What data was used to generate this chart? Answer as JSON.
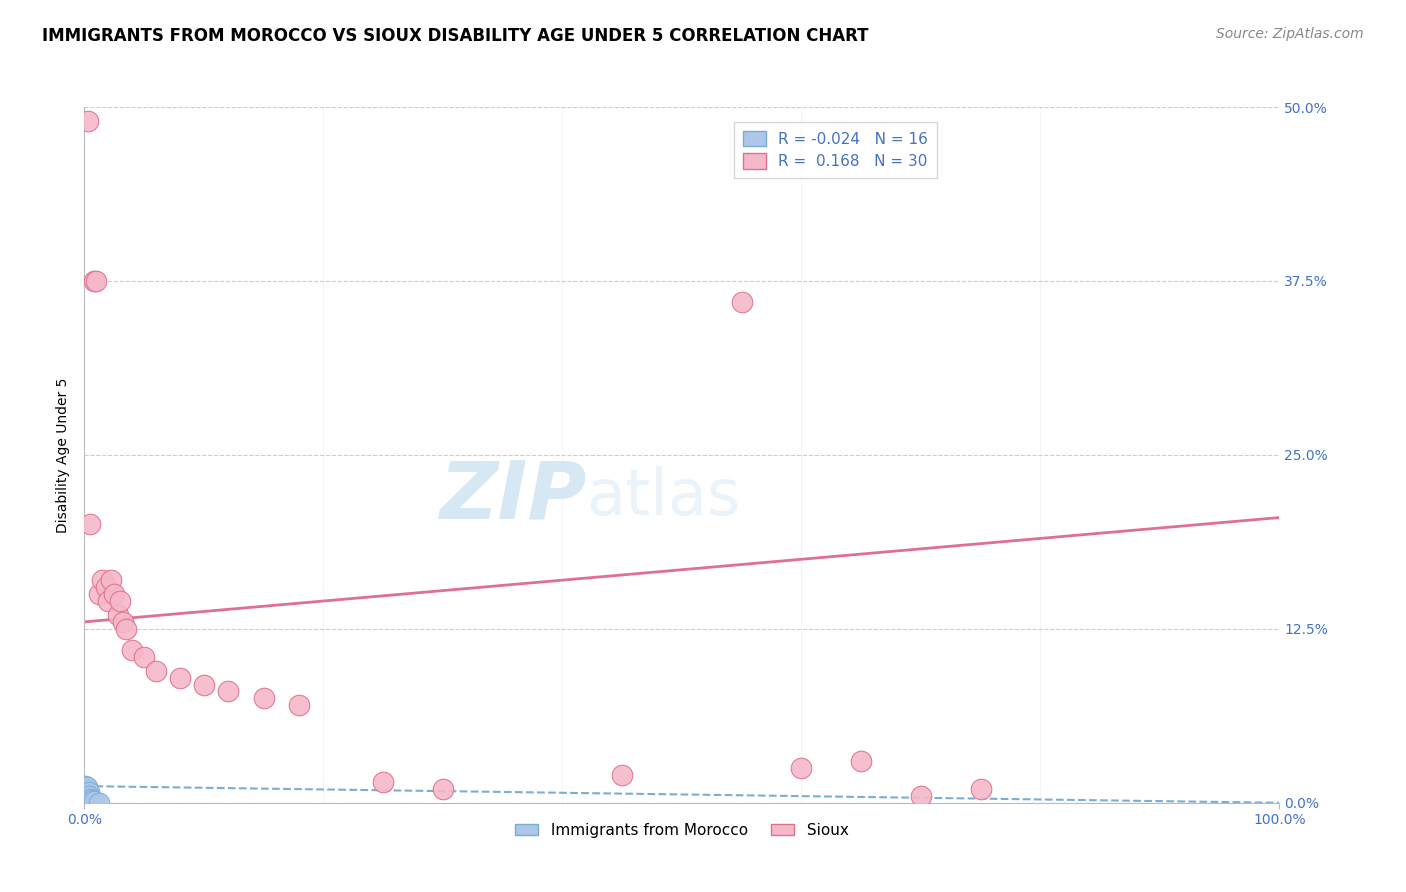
{
  "title": "IMMIGRANTS FROM MOROCCO VS SIOUX DISABILITY AGE UNDER 5 CORRELATION CHART",
  "source": "Source: ZipAtlas.com",
  "ylabel": "Disability Age Under 5",
  "xlim": [
    0.0,
    100.0
  ],
  "ylim": [
    0.0,
    50.0
  ],
  "yticks": [
    0.0,
    12.5,
    25.0,
    37.5,
    50.0
  ],
  "background_color": "#ffffff",
  "watermark_zip": "ZIP",
  "watermark_atlas": "atlas",
  "morocco_color": "#aec6e8",
  "morocco_edge": "#7aadd4",
  "morocco_trend_color": "#7aadd4",
  "sioux_color": "#f4b8c8",
  "sioux_edge": "#e07090",
  "sioux_trend_color": "#e07090",
  "R_morocco": -0.024,
  "N_morocco": 16,
  "R_sioux": 0.168,
  "N_sioux": 30,
  "morocco_x": [
    0.05,
    0.08,
    0.1,
    0.12,
    0.15,
    0.18,
    0.2,
    0.22,
    0.25,
    0.3,
    0.35,
    0.4,
    0.5,
    0.6,
    0.8,
    1.2
  ],
  "morocco_y": [
    0.8,
    1.2,
    0.5,
    0.9,
    1.0,
    0.7,
    1.1,
    0.6,
    0.4,
    0.3,
    0.8,
    0.5,
    0.3,
    0.2,
    0.1,
    0.0
  ],
  "sioux_x": [
    0.3,
    0.5,
    0.8,
    1.0,
    1.2,
    1.5,
    1.8,
    2.0,
    2.2,
    2.5,
    2.8,
    3.0,
    3.2,
    3.5,
    4.0,
    5.0,
    6.0,
    8.0,
    10.0,
    12.0,
    15.0,
    18.0,
    25.0,
    30.0,
    45.0,
    55.0,
    60.0,
    65.0,
    70.0,
    75.0
  ],
  "sioux_y": [
    49.0,
    20.0,
    37.5,
    37.5,
    15.0,
    16.0,
    15.5,
    14.5,
    16.0,
    15.0,
    13.5,
    14.5,
    13.0,
    12.5,
    11.0,
    10.5,
    9.5,
    9.0,
    8.5,
    8.0,
    7.5,
    7.0,
    1.5,
    1.0,
    2.0,
    36.0,
    2.5,
    3.0,
    0.5,
    1.0
  ],
  "morocco_trend_x": [
    0,
    100
  ],
  "morocco_trend_y": [
    1.2,
    0.0
  ],
  "sioux_trend_x": [
    0,
    100
  ],
  "sioux_trend_y": [
    13.0,
    20.5
  ],
  "title_fontsize": 12,
  "axis_label_fontsize": 10,
  "tick_fontsize": 10,
  "source_fontsize": 10,
  "legend_fontsize": 11
}
